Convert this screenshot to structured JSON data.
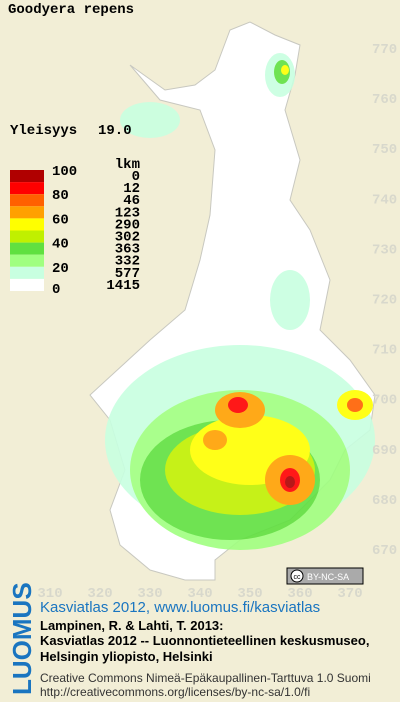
{
  "map": {
    "title": "Goodyera repens",
    "frequency_label": "Yleisyys",
    "frequency_value": "19.0",
    "legend": {
      "count_header": "lkm",
      "scale": [
        100,
        80,
        60,
        40,
        20,
        0
      ],
      "colors": [
        "#b00000",
        "#ff0000",
        "#ff6000",
        "#ffa000",
        "#ffff00",
        "#c0f000",
        "#60e040",
        "#a0ff80",
        "#c8ffe0",
        "#ffffff"
      ],
      "counts": [
        0,
        12,
        46,
        123,
        290,
        302,
        363,
        332,
        577,
        1415
      ]
    },
    "grid_north": [
      770,
      760,
      750,
      740,
      730,
      720,
      710,
      700,
      690,
      680,
      670
    ],
    "grid_east": [
      310,
      320,
      330,
      340,
      350,
      360,
      370
    ],
    "license_badge": "BY-NC-SA",
    "credits": {
      "brand": "LUOMUS",
      "link": "Kasviatlas 2012, www.luomus.fi/kasviatlas",
      "lines": [
        "Lampinen, R. & Lahti, T. 2013:",
        "Kasviatlas 2012 -- Luonnontieteellinen keskusmuseo,",
        "Helsingin yliopisto, Helsinki"
      ],
      "license": "Creative Commons Nimeä-Epäkaupallinen-Tarttuva 1.0 Suomi",
      "license_url": "http://creativecommons.org/licenses/by-nc-sa/1.0/fi"
    }
  }
}
